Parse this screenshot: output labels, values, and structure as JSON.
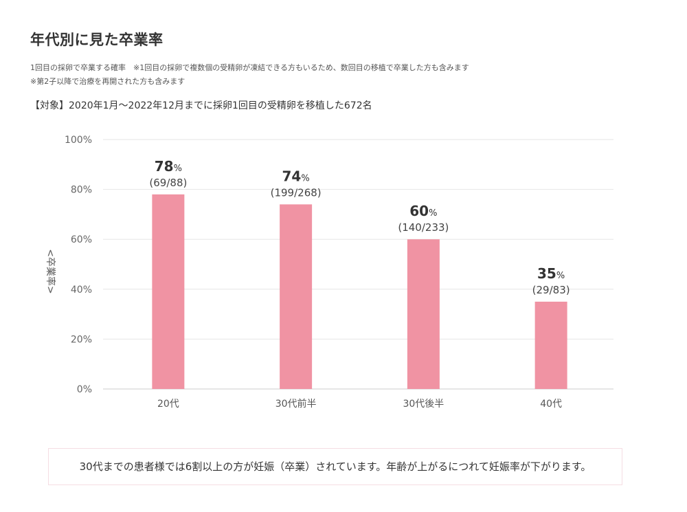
{
  "header": {
    "title": "年代別に見た卒業率",
    "note_line1": "1回目の採卵で卒業する確率　※1回目の採卵で複数個の受精卵が凍結できる方もいるため、数回目の移植で卒業した方も含みます",
    "note_line2": "※第2子以降で治療を再開された方も含みます",
    "target": "【対象】2020年1月〜2022年12月までに採卵1回目の受精卵を移植した672名"
  },
  "chart_data": {
    "type": "bar",
    "title": "",
    "xlabel": "",
    "ylabel": "<卒業率>",
    "ylim": [
      0,
      100
    ],
    "y_ticks": [
      "0%",
      "20%",
      "40%",
      "60%",
      "80%",
      "100%"
    ],
    "y_tick_values": [
      0,
      20,
      40,
      60,
      80,
      100
    ],
    "grid": true,
    "categories": [
      "20代",
      "30代前半",
      "30代後半",
      "40代"
    ],
    "values": [
      78,
      74,
      60,
      35
    ],
    "value_labels": [
      "78",
      "74",
      "60",
      "35"
    ],
    "percent_sign": "%",
    "count_labels": [
      "(69/88)",
      "(199/268)",
      "(140/233)",
      "(29/83)"
    ],
    "bar_color": "#f093a3"
  },
  "summary": "30代までの患者様では6割以上の方が妊娠（卒業）されています。年齢が上がるにつれて妊娠率が下がります。"
}
